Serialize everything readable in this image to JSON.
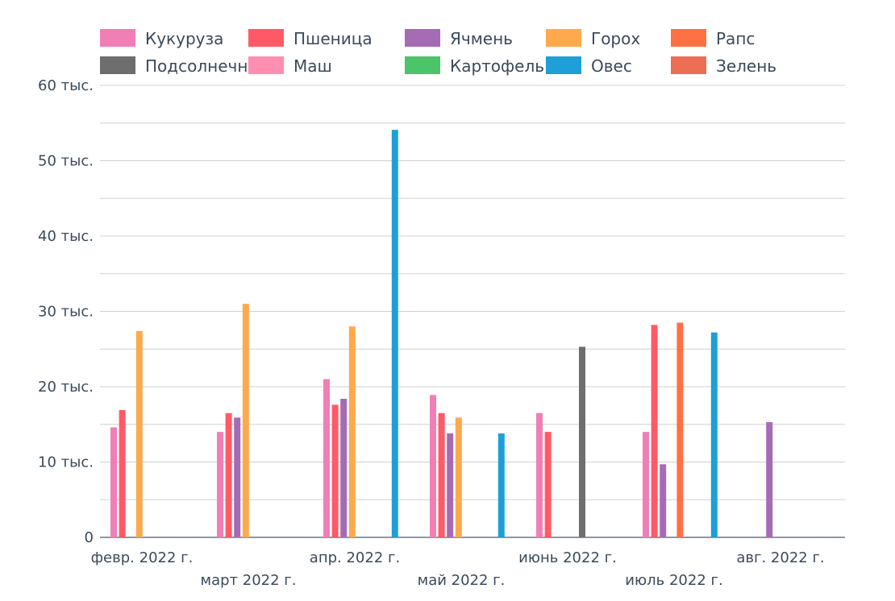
{
  "chart_data": {
    "type": "bar",
    "categories": [
      "февр. 2022 г.",
      "март 2022 г.",
      "апр. 2022 г.",
      "май 2022 г.",
      "июнь 2022 г.",
      "июль 2022 г.",
      "авг. 2022 г."
    ],
    "series": [
      {
        "name": "Кукуруза",
        "color": "#f07fb6",
        "values": [
          14600,
          14000,
          21000,
          18900,
          16500,
          14000,
          null
        ]
      },
      {
        "name": "Пшеница",
        "color": "#ff5a66",
        "values": [
          16900,
          16500,
          17600,
          16500,
          14000,
          28200,
          null
        ]
      },
      {
        "name": "Ячмень",
        "color": "#a66bb5",
        "values": [
          null,
          15900,
          18400,
          13800,
          null,
          9700,
          15300
        ]
      },
      {
        "name": "Горох",
        "color": "#ffa94d",
        "values": [
          27400,
          31000,
          28000,
          15900,
          null,
          null,
          null
        ]
      },
      {
        "name": "Рапс",
        "color": "#ff7043",
        "values": [
          null,
          null,
          null,
          null,
          null,
          28500,
          null
        ]
      },
      {
        "name": "Подсолнечник",
        "color": "#6e6e6e",
        "values": [
          null,
          null,
          null,
          null,
          25300,
          null,
          null
        ]
      },
      {
        "name": "Маш",
        "color": "#ff8fb1",
        "values": [
          null,
          null,
          null,
          null,
          null,
          null,
          null
        ]
      },
      {
        "name": "Картофель",
        "color": "#4cc46a",
        "values": [
          null,
          null,
          null,
          null,
          null,
          null,
          null
        ]
      },
      {
        "name": "Овес",
        "color": "#1e9fd8",
        "values": [
          null,
          null,
          54100,
          13800,
          null,
          27200,
          null
        ]
      },
      {
        "name": "Зелень",
        "color": "#eb6e55",
        "values": [
          null,
          null,
          null,
          null,
          null,
          null,
          null
        ]
      }
    ],
    "ylim": [
      0,
      60000
    ],
    "ytick_values": [
      0,
      10000,
      20000,
      30000,
      40000,
      50000,
      60000
    ],
    "ytick_labels": [
      "0",
      "10 тыс.",
      "20 тыс.",
      "30 тыс.",
      "40 тыс.",
      "50 тыс.",
      "60 тыс."
    ],
    "grid": true,
    "legend_position": "top"
  }
}
